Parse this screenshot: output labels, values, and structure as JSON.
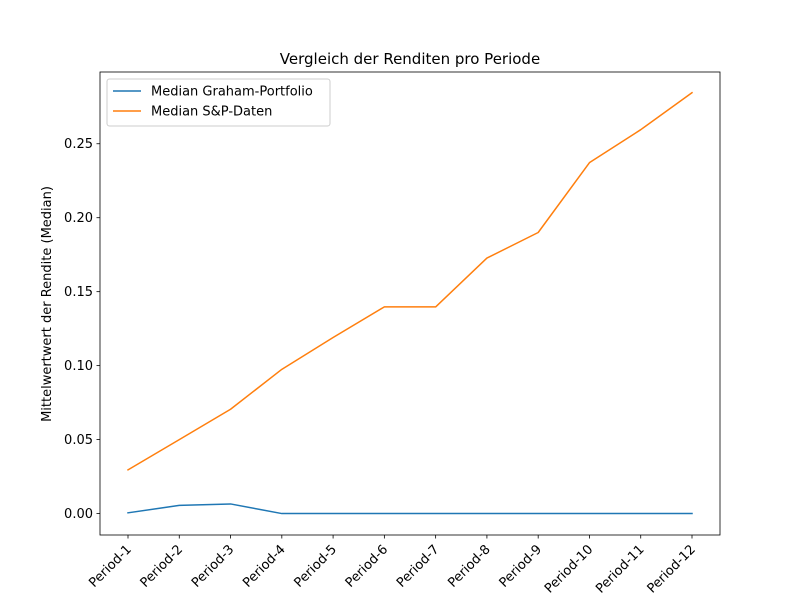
{
  "chart_data": {
    "type": "line",
    "title": "Vergleich der Renditen pro Periode",
    "xlabel": "",
    "ylabel": "Mittelwertwert der Rendite (Median)",
    "categories": [
      "Period-1",
      "Period-2",
      "Period-3",
      "Period-4",
      "Period-5",
      "Period-6",
      "Period-7",
      "Period-8",
      "Period-9",
      "Period-10",
      "Period-11",
      "Period-12"
    ],
    "ylim": [
      -0.0145,
      0.2985
    ],
    "yticks": [
      0.0,
      0.05,
      0.1,
      0.15,
      0.2,
      0.25
    ],
    "ytick_labels": [
      "0.00",
      "0.05",
      "0.10",
      "0.15",
      "0.20",
      "0.25"
    ],
    "grid": false,
    "legend_position": "top-left",
    "series": [
      {
        "name": "Median Graham-Portfolio",
        "color": "#1f77b4",
        "values": [
          0.0005,
          0.0055,
          0.0065,
          0.0,
          0.0,
          0.0,
          0.0,
          0.0,
          0.0,
          0.0,
          0.0,
          0.0
        ]
      },
      {
        "name": "Median S&P-Daten",
        "color": "#ff7f0e",
        "values": [
          0.0295,
          0.05,
          0.0705,
          0.0975,
          0.119,
          0.1397,
          0.1397,
          0.1727,
          0.19,
          0.2372,
          0.2595,
          0.2845
        ]
      }
    ]
  }
}
